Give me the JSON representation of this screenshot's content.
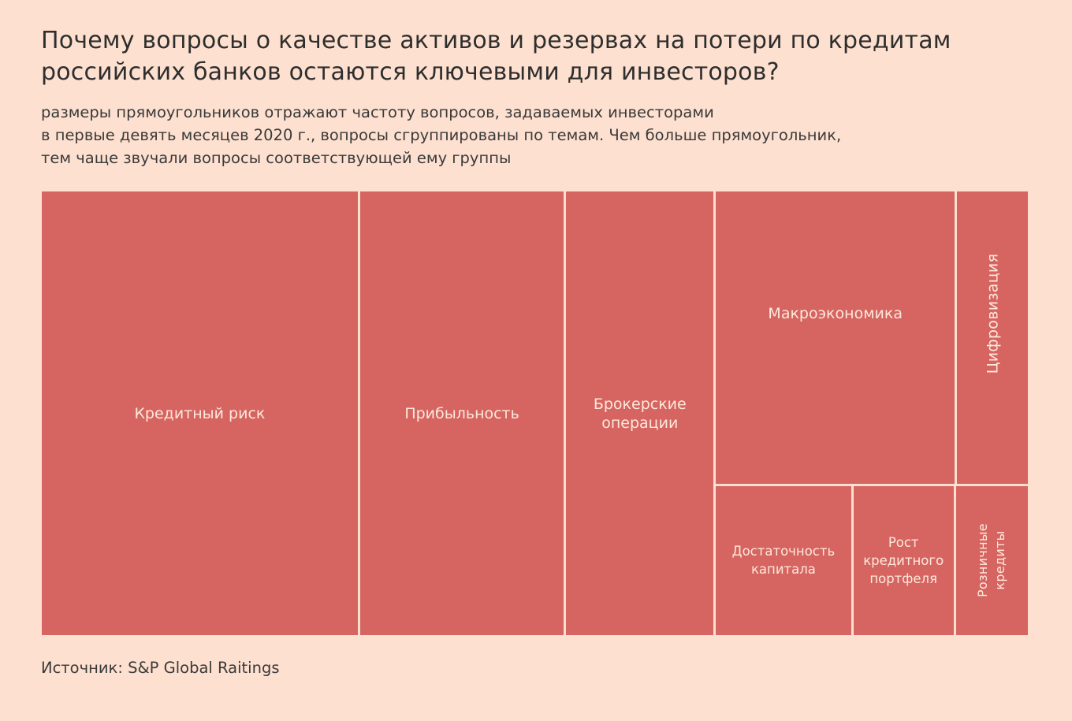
{
  "title_lines": [
    "Почему вопросы о качестве активов и резервах на потери по кредитам",
    "российских банков остаются ключевыми для инвесторов?"
  ],
  "subtitle_lines": [
    "размеры прямоугольников отражают частоту вопросов, задаваемых инвесторами",
    "в первые девять месяцев 2020 г., вопросы сгруппированы по темам. Чем больше прямоугольник,",
    "тем чаще звучали вопросы соответствующей ему группы"
  ],
  "source": "Источник: S&P Global Raitings",
  "colors": {
    "background": "#fde0cf",
    "cell_fill": "#d66561",
    "cell_text": "#fde8dc",
    "title_text": "#2e2e2e"
  },
  "chart_data": {
    "type": "treemap",
    "title": "Почему вопросы о качестве активов и резервах на потери по кредитам российских банков остаются ключевыми для инвесторов?",
    "subtitle": "размеры прямоугольников отражают частоту вопросов, задаваемых инвесторами в первые девять месяцев 2020 г., вопросы сгруппированы по темам. Чем больше прямоугольник, тем чаще звучали вопросы соответствующей ему группы",
    "value_unit": "relative share of questions (estimated from rectangle areas)",
    "items": [
      {
        "name": "Кредитный риск",
        "value": 32.0
      },
      {
        "name": "Прибыльность",
        "value": 20.8
      },
      {
        "name": "Брокерские операции",
        "value": 15.1
      },
      {
        "name": "Макроэкономика",
        "value": 16.1
      },
      {
        "name": "Цифровизация",
        "value": 4.8
      },
      {
        "name": "Достаточность капитала",
        "value": 4.7
      },
      {
        "name": "Рост кредитного портфеля",
        "value": 3.5
      },
      {
        "name": "Розничные кредиты",
        "value": 2.5
      }
    ]
  }
}
